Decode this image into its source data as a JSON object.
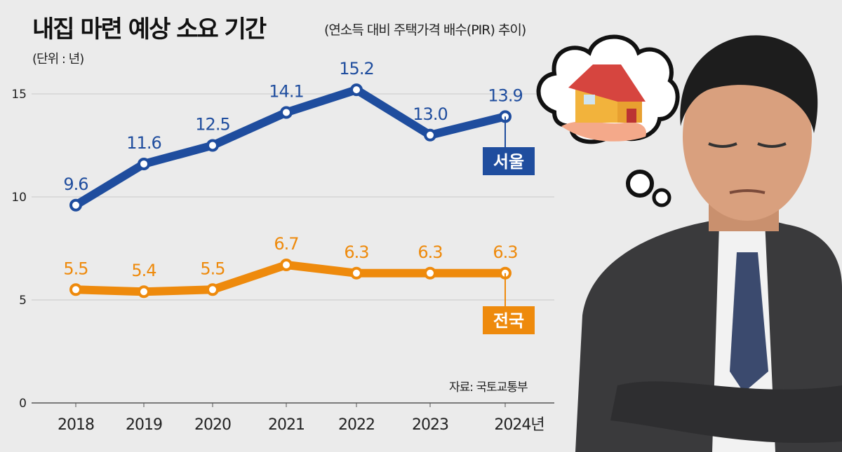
{
  "chart_data": {
    "type": "line",
    "title": "내집 마련 예상 소요 기간",
    "subtitle": "(연소득 대비 주택가격 배수(PIR) 추이)",
    "unit": "(단위 : 년)",
    "source": "자료: 국토교통부",
    "categories": [
      "2018",
      "2019",
      "2020",
      "2021",
      "2022",
      "2023",
      "2024년"
    ],
    "ylim": [
      0,
      15
    ],
    "yticks": [
      "0",
      "5",
      "10",
      "15"
    ],
    "grid": true,
    "series": [
      {
        "name": "서울",
        "values": [
          9.6,
          11.6,
          12.5,
          14.1,
          15.2,
          13.0,
          13.9
        ],
        "labels": [
          "9.6",
          "11.6",
          "12.5",
          "14.1",
          "15.2",
          "13.0",
          "13.9"
        ],
        "color": "#1f4d9e"
      },
      {
        "name": "전국",
        "values": [
          5.5,
          5.4,
          5.5,
          6.7,
          6.3,
          6.3,
          6.3
        ],
        "labels": [
          "5.5",
          "5.4",
          "5.5",
          "6.7",
          "6.3",
          "6.3",
          "6.3"
        ],
        "color": "#ee8a0c"
      }
    ]
  }
}
